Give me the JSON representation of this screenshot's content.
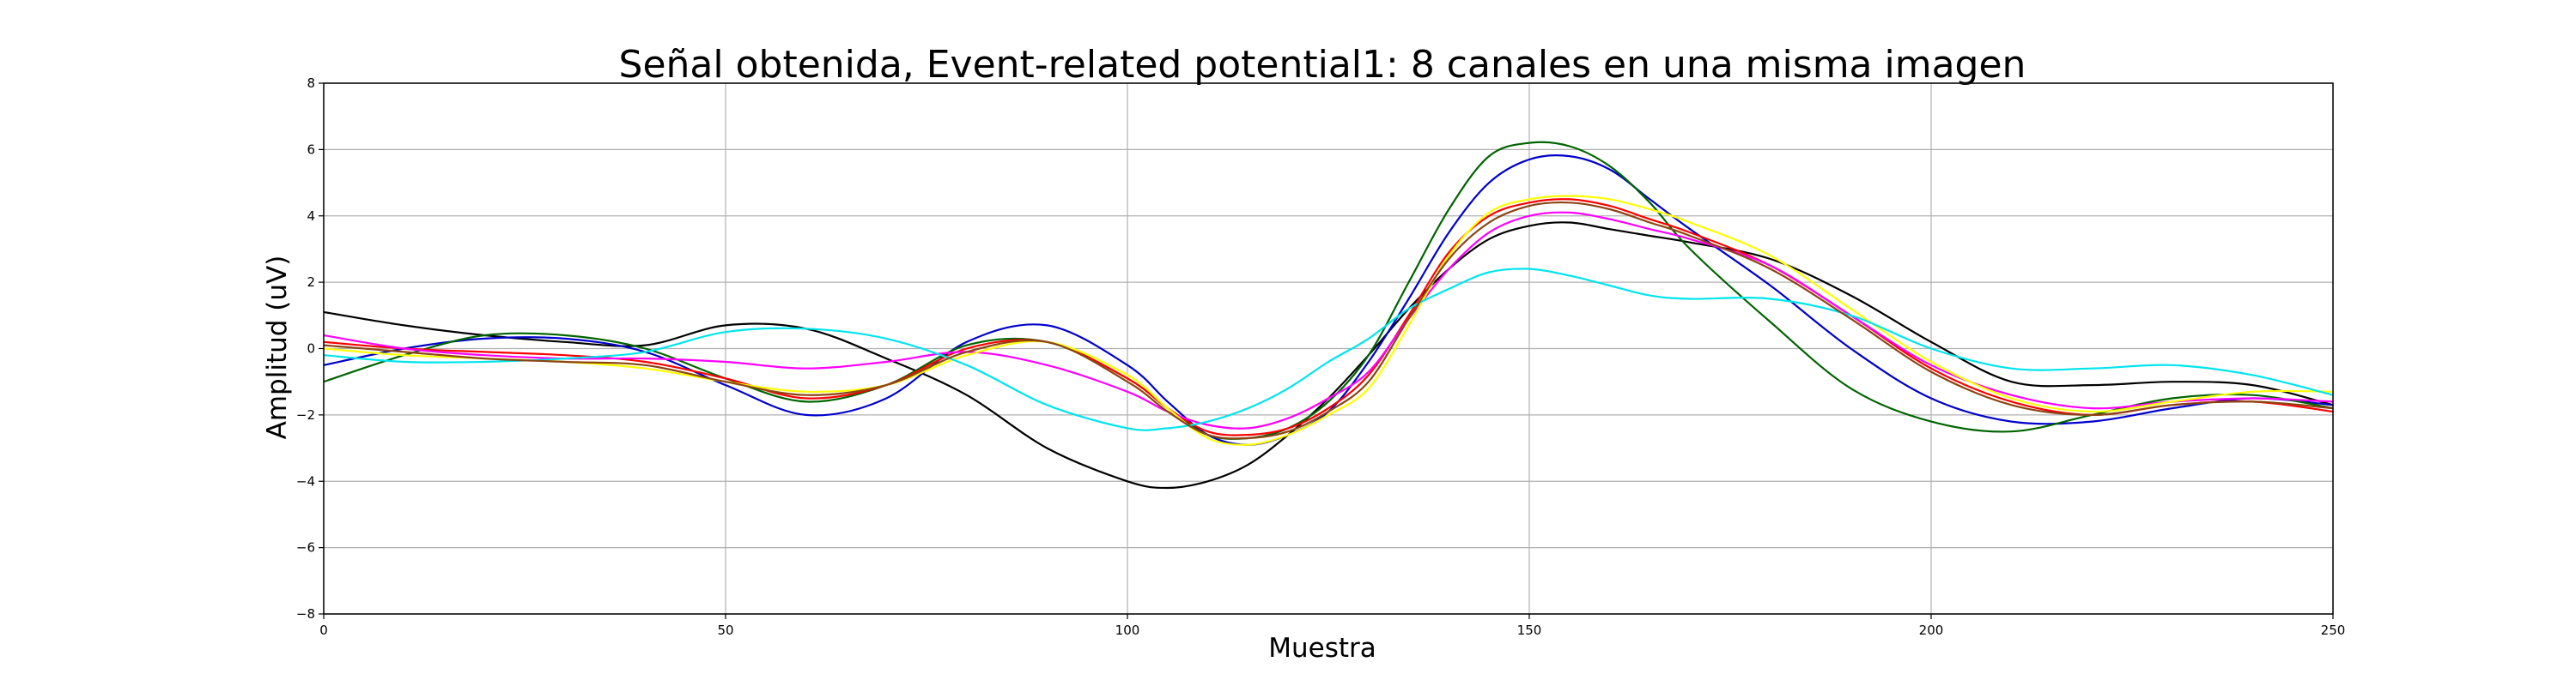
{
  "chart_data": {
    "type": "line",
    "title": "Señal obtenida, Event-related potential1: 8 canales en una misma imagen",
    "xlabel": "Muestra",
    "ylabel": "Amplitud (uV)",
    "xlim": [
      0,
      250
    ],
    "ylim": [
      -8,
      8
    ],
    "xticks": [
      0,
      50,
      100,
      150,
      200,
      250
    ],
    "yticks": [
      -8,
      -6,
      -4,
      -2,
      0,
      2,
      4,
      6,
      8
    ],
    "grid": true,
    "x": [
      0,
      10,
      20,
      30,
      40,
      50,
      60,
      70,
      80,
      90,
      100,
      105,
      110,
      115,
      120,
      125,
      130,
      135,
      140,
      145,
      150,
      155,
      160,
      165,
      170,
      180,
      190,
      200,
      210,
      220,
      230,
      240,
      250
    ],
    "series": [
      {
        "color": "#000000",
        "values": [
          1.1,
          0.7,
          0.4,
          0.2,
          0.1,
          0.7,
          0.6,
          -0.3,
          -1.4,
          -3.0,
          -4.0,
          -4.2,
          -4.0,
          -3.5,
          -2.6,
          -1.5,
          -0.2,
          1.2,
          2.4,
          3.3,
          3.7,
          3.8,
          3.6,
          3.4,
          3.2,
          2.7,
          1.6,
          0.2,
          -1.0,
          -1.1,
          -1.0,
          -1.1,
          -1.7
        ]
      },
      {
        "color": "#0000cc",
        "values": [
          -0.5,
          0.0,
          0.3,
          0.3,
          -0.1,
          -1.1,
          -2.0,
          -1.5,
          0.2,
          0.7,
          -0.5,
          -1.6,
          -2.6,
          -2.9,
          -2.6,
          -1.9,
          -0.4,
          1.5,
          3.5,
          5.0,
          5.7,
          5.8,
          5.4,
          4.5,
          3.6,
          1.9,
          0.0,
          -1.5,
          -2.2,
          -2.2,
          -1.8,
          -1.5,
          -1.7
        ]
      },
      {
        "color": "#006400",
        "values": [
          -1.0,
          -0.2,
          0.4,
          0.4,
          0.0,
          -0.9,
          -1.6,
          -1.1,
          0.1,
          0.2,
          -0.9,
          -1.8,
          -2.6,
          -2.7,
          -2.4,
          -1.6,
          -0.2,
          2.0,
          4.2,
          5.8,
          6.2,
          6.1,
          5.5,
          4.4,
          3.0,
          0.8,
          -1.2,
          -2.2,
          -2.5,
          -2.0,
          -1.5,
          -1.4,
          -1.8
        ]
      },
      {
        "color": "#ff0000",
        "values": [
          0.2,
          0.0,
          -0.1,
          -0.2,
          -0.4,
          -0.9,
          -1.5,
          -1.1,
          0.0,
          0.2,
          -0.9,
          -1.8,
          -2.5,
          -2.6,
          -2.4,
          -1.8,
          -0.8,
          1.0,
          2.9,
          4.0,
          4.4,
          4.5,
          4.3,
          3.9,
          3.5,
          2.5,
          1.0,
          -0.6,
          -1.6,
          -2.0,
          -1.7,
          -1.6,
          -1.9
        ]
      },
      {
        "color": "#ff00ff",
        "values": [
          0.4,
          0.0,
          -0.2,
          -0.3,
          -0.3,
          -0.4,
          -0.6,
          -0.4,
          -0.1,
          -0.5,
          -1.3,
          -1.9,
          -2.3,
          -2.4,
          -2.1,
          -1.5,
          -0.7,
          0.9,
          2.4,
          3.5,
          4.0,
          4.1,
          3.9,
          3.6,
          3.3,
          2.5,
          1.0,
          -0.5,
          -1.4,
          -1.8,
          -1.6,
          -1.5,
          -1.6
        ]
      },
      {
        "color": "#ffff00",
        "values": [
          0.0,
          -0.2,
          -0.3,
          -0.4,
          -0.6,
          -1.0,
          -1.3,
          -1.1,
          -0.2,
          0.2,
          -0.8,
          -1.8,
          -2.7,
          -2.9,
          -2.6,
          -2.0,
          -1.2,
          0.7,
          2.8,
          4.1,
          4.5,
          4.6,
          4.5,
          4.2,
          3.8,
          2.8,
          1.2,
          -0.4,
          -1.5,
          -1.9,
          -1.6,
          -1.3,
          -1.3
        ]
      },
      {
        "color": "#00e5ee",
        "values": [
          -0.2,
          -0.4,
          -0.4,
          -0.3,
          -0.1,
          0.5,
          0.6,
          0.3,
          -0.5,
          -1.7,
          -2.4,
          -2.4,
          -2.2,
          -1.8,
          -1.2,
          -0.4,
          0.3,
          1.2,
          1.8,
          2.3,
          2.4,
          2.2,
          1.9,
          1.6,
          1.5,
          1.5,
          1.0,
          0.0,
          -0.6,
          -0.6,
          -0.5,
          -0.8,
          -1.4
        ]
      },
      {
        "color": "#8b4513",
        "values": [
          0.1,
          -0.1,
          -0.3,
          -0.4,
          -0.5,
          -1.0,
          -1.4,
          -1.1,
          -0.1,
          0.2,
          -1.0,
          -1.9,
          -2.6,
          -2.7,
          -2.5,
          -1.9,
          -1.0,
          0.9,
          2.7,
          3.8,
          4.3,
          4.4,
          4.2,
          3.8,
          3.4,
          2.4,
          0.9,
          -0.7,
          -1.7,
          -2.0,
          -1.7,
          -1.6,
          -1.8
        ]
      }
    ]
  }
}
